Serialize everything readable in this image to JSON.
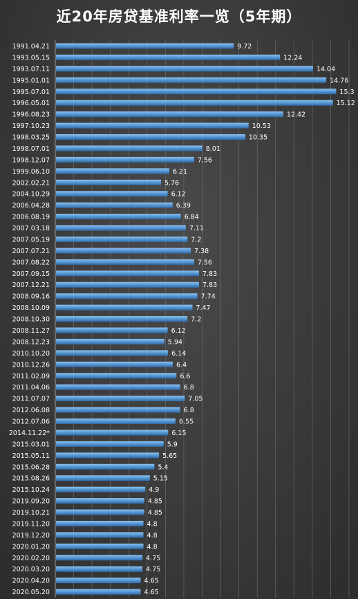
{
  "chart_data": {
    "type": "bar",
    "orientation": "horizontal",
    "title": "近20年房贷基准利率一览（5年期）",
    "xlim": [
      0,
      16
    ],
    "grid": true,
    "colors": {
      "bar": "#5b9bd5",
      "bar_dark": "#2f6aa8",
      "background": "#3a3a3a",
      "grid": "#6a6a6a",
      "text": "#ffffff"
    },
    "categories": [
      "1991.04.21",
      "1993.05.15",
      "1993.07.11",
      "1995.01.01",
      "1995.07.01",
      "1996.05.01",
      "1996.08.23",
      "1997.10.23",
      "1998.03.25",
      "1998.07.01",
      "1998.12.07",
      "1999.06.10",
      "2002.02.21",
      "2004.10.29",
      "2006.04.28",
      "2006.08.19",
      "2007.03.18",
      "2007.05.19",
      "2007.07.21",
      "2007.08.22",
      "2007.09.15",
      "2007.12.21",
      "2008.09.16",
      "2008.10.09",
      "2008.10.30",
      "2008.11.27",
      "2008.12.23",
      "2010.10.20",
      "2010.12.26",
      "2011.02.09",
      "2011.04.06",
      "2011.07.07",
      "2012.06.08",
      "2012.07.06",
      "2014.11.22*",
      "2015.03.01",
      "2015.05.11",
      "2015.06.28",
      "2015.08.26",
      "2015.10.24",
      "2019.09.20",
      "2019.10.21",
      "2019.11.20",
      "2019.12.20",
      "2020.01.20",
      "2020.02.20",
      "2020.03.20",
      "2020.04.20",
      "2020.05.20"
    ],
    "values": [
      9.72,
      12.24,
      14.04,
      14.76,
      15.3,
      15.12,
      12.42,
      10.53,
      10.35,
      8.01,
      7.56,
      6.21,
      5.76,
      6.12,
      6.39,
      6.84,
      7.11,
      7.2,
      7.38,
      7.56,
      7.83,
      7.83,
      7.74,
      7.47,
      7.2,
      6.12,
      5.94,
      6.14,
      6.4,
      6.6,
      6.8,
      7.05,
      6.8,
      6.55,
      6.15,
      5.9,
      5.65,
      5.4,
      5.15,
      4.9,
      4.85,
      4.85,
      4.8,
      4.8,
      4.8,
      4.75,
      4.75,
      4.65,
      4.65
    ],
    "labels": [
      "9.72",
      "12.24",
      "14.04",
      "14.76",
      "15.3",
      "15.12",
      "12.42",
      "10.53",
      "10.35",
      "8.01",
      "7.56",
      "6.21",
      "5.76",
      "6.12",
      "6.39",
      "6.84",
      "7.11",
      "7.2",
      "7.38",
      "7.56",
      "7.83",
      "7.83",
      "7.74",
      "7.47",
      "7.2",
      "6.12",
      "5.94",
      "6.14",
      "6.4",
      "6.6",
      "6.8",
      "7.05",
      "6.8",
      "6.55",
      "6.15",
      "5.9",
      "5.65",
      "5.4",
      "5.15",
      "4.9",
      "4.85",
      "4.85",
      "4.8",
      "4.8",
      "4.8",
      "4.75",
      "4.75",
      "4.65",
      "4.65"
    ]
  }
}
